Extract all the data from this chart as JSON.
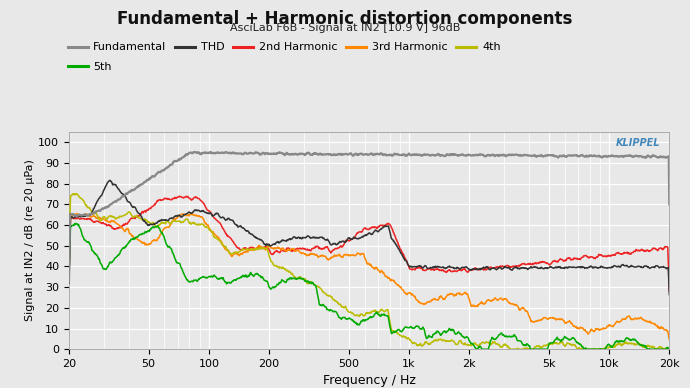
{
  "title": "Fundamental + Harmonic distortion components",
  "subtitle": "AsciLab F6B - Signal at IN2 [10.9 V] 96dB",
  "xlabel": "Frequency / Hz",
  "ylabel": "Signal at IN2 / dB (re 20 µPa)",
  "xlim": [
    20,
    20000
  ],
  "ylim": [
    0,
    105
  ],
  "yticks": [
    0,
    10,
    20,
    30,
    40,
    50,
    60,
    70,
    80,
    90,
    100
  ],
  "xticks": [
    20,
    50,
    100,
    200,
    500,
    1000,
    2000,
    5000,
    10000,
    20000
  ],
  "xticklabels": [
    "20",
    "50",
    "100",
    "200",
    "500",
    "1k",
    "2k",
    "5k",
    "10k",
    "20k"
  ],
  "colors": {
    "fundamental": "#888888",
    "thd": "#333333",
    "h2": "#ee2222",
    "h3": "#ff8800",
    "h4": "#bbbb00",
    "h5": "#00aa00"
  },
  "legend": [
    {
      "label": "Fundamental",
      "color": "#888888"
    },
    {
      "label": "THD",
      "color": "#333333"
    },
    {
      "label": "2nd Harmonic",
      "color": "#ee2222"
    },
    {
      "label": "3rd Harmonic",
      "color": "#ff8800"
    },
    {
      "label": "4th",
      "color": "#bbbb00"
    },
    {
      "label": "5th",
      "color": "#00aa00"
    }
  ],
  "bg_color": "#e8e8e8",
  "plot_bg_color": "#e8e8e8",
  "grid_color": "#ffffff",
  "watermark": "KLIPPEL",
  "watermark_color": "#4488bb"
}
